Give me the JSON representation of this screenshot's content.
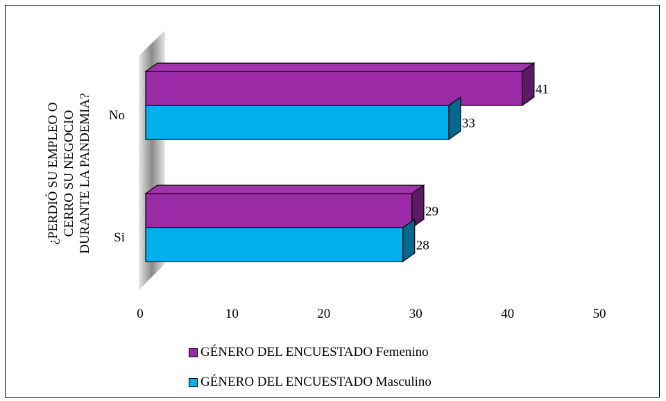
{
  "chart_data": {
    "type": "bar",
    "orientation": "horizontal",
    "three_d": true,
    "categories": [
      "No",
      "Si"
    ],
    "series": [
      {
        "name": "GÉNERO DEL ENCUESTADO Femenino",
        "values": [
          41,
          29
        ],
        "color": "#9B2AA7"
      },
      {
        "name": "GÉNERO DEL ENCUESTADO Masculino",
        "values": [
          33,
          28
        ],
        "color": "#00B0EC"
      }
    ],
    "ylabel_lines": [
      "¿PERDIÓ SU EMPLEO O",
      "CERRO SU NEGOCIO",
      "DURANTE LA PANDEMIA?"
    ],
    "xlabel": "",
    "xlim": [
      0,
      50
    ],
    "xticks": [
      "0",
      "10",
      "20",
      "30",
      "40",
      "50"
    ],
    "data_labels": [
      "41",
      "33",
      "29",
      "28"
    ],
    "grid": false,
    "legend_position": "bottom"
  }
}
